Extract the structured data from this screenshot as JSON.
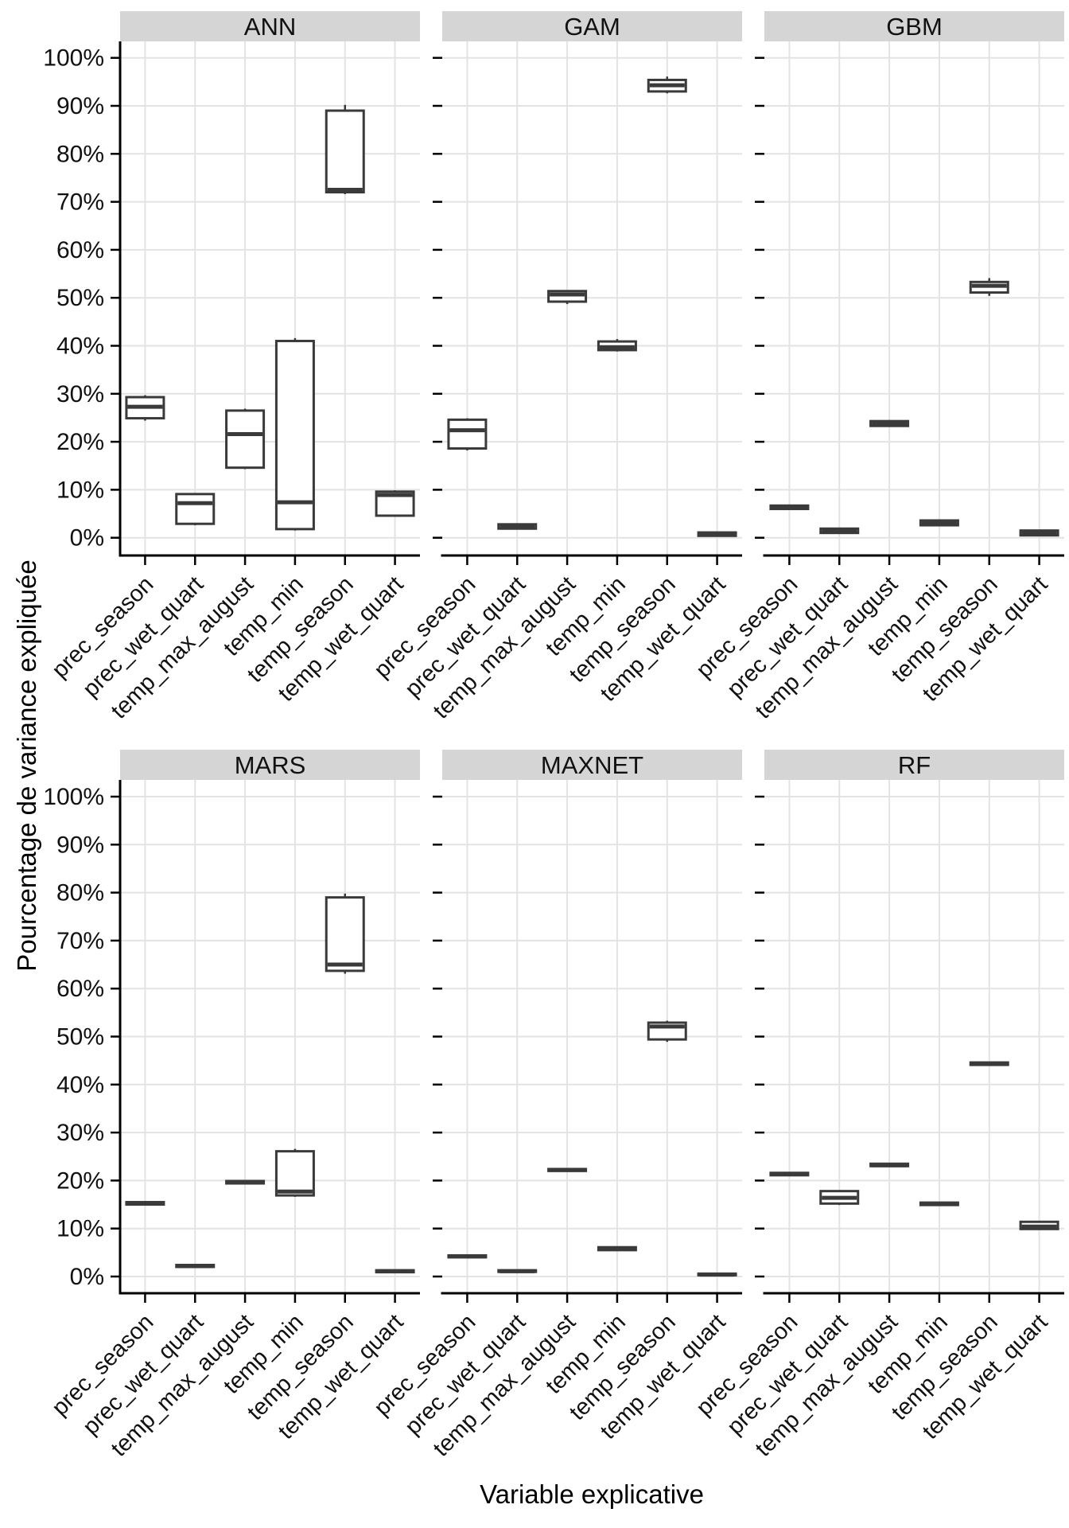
{
  "figure": {
    "y_axis_title": "Pourcentage de variance expliquée",
    "x_axis_title": "Variable explicative"
  },
  "chart_data": {
    "type": "boxplot",
    "facet_layout": [
      "ANN",
      "GAM",
      "GBM",
      "MARS",
      "MAXNET",
      "RF"
    ],
    "categories": [
      "prec_season",
      "prec_wet_quart",
      "temp_max_august",
      "temp_min",
      "temp_season",
      "temp_wet_quart"
    ],
    "y_axis": {
      "label": "Pourcentage de variance expliquée",
      "tick_labels": [
        "0%",
        "10%",
        "20%",
        "30%",
        "40%",
        "50%",
        "60%",
        "70%",
        "80%",
        "90%",
        "100%"
      ],
      "tick_values": [
        0,
        10,
        20,
        30,
        40,
        50,
        60,
        70,
        80,
        90,
        100
      ],
      "range": [
        0,
        100
      ],
      "grid": true
    },
    "x_axis": {
      "label": "Variable explicative",
      "tick_rotation_deg": 45
    },
    "facets": [
      {
        "name": "ANN",
        "boxes": [
          {
            "variable": "prec_season",
            "whisker_low": 24.4,
            "q1": 24.9,
            "median": 27.3,
            "q3": 29.3,
            "whisker_high": 29.7
          },
          {
            "variable": "prec_wet_quart",
            "whisker_low": 2.6,
            "q1": 2.9,
            "median": 7.2,
            "q3": 9.1,
            "whisker_high": 9.3
          },
          {
            "variable": "temp_max_august",
            "whisker_low": 14.3,
            "q1": 14.6,
            "median": 21.6,
            "q3": 26.5,
            "whisker_high": 26.9
          },
          {
            "variable": "temp_min",
            "whisker_low": 1.5,
            "q1": 1.8,
            "median": 7.4,
            "q3": 41.0,
            "whisker_high": 41.6
          },
          {
            "variable": "temp_season",
            "whisker_low": 71.6,
            "q1": 72.0,
            "median": 72.5,
            "q3": 89.0,
            "whisker_high": 90.2
          },
          {
            "variable": "temp_wet_quart",
            "whisker_low": 4.4,
            "q1": 4.6,
            "median": 8.9,
            "q3": 9.6,
            "whisker_high": 9.9
          }
        ]
      },
      {
        "name": "GAM",
        "boxes": [
          {
            "variable": "prec_season",
            "whisker_low": 18.2,
            "q1": 18.6,
            "median": 22.4,
            "q3": 24.6,
            "whisker_high": 24.9
          },
          {
            "variable": "prec_wet_quart",
            "whisker_low": 1.7,
            "q1": 1.9,
            "median": 2.3,
            "q3": 2.8,
            "whisker_high": 3.0
          },
          {
            "variable": "temp_max_august",
            "whisker_low": 48.7,
            "q1": 49.2,
            "median": 50.7,
            "q3": 51.4,
            "whisker_high": 51.6
          },
          {
            "variable": "temp_min",
            "whisker_low": 38.8,
            "q1": 39.1,
            "median": 39.7,
            "q3": 40.9,
            "whisker_high": 41.4
          },
          {
            "variable": "temp_season",
            "whisker_low": 92.6,
            "q1": 93.0,
            "median": 94.3,
            "q3": 95.4,
            "whisker_high": 96.1
          },
          {
            "variable": "temp_wet_quart",
            "whisker_low": 0.3,
            "q1": 0.4,
            "median": 0.7,
            "q3": 1.1,
            "whisker_high": 1.2
          }
        ]
      },
      {
        "name": "GBM",
        "boxes": [
          {
            "variable": "prec_season",
            "whisker_low": 5.9,
            "q1": 6.0,
            "median": 6.3,
            "q3": 6.7,
            "whisker_high": 6.8
          },
          {
            "variable": "prec_wet_quart",
            "whisker_low": 0.9,
            "q1": 1.0,
            "median": 1.4,
            "q3": 1.9,
            "whisker_high": 2.0
          },
          {
            "variable": "temp_max_august",
            "whisker_low": 23.1,
            "q1": 23.3,
            "median": 23.8,
            "q3": 24.3,
            "whisker_high": 24.5
          },
          {
            "variable": "temp_min",
            "whisker_low": 2.4,
            "q1": 2.6,
            "median": 3.0,
            "q3": 3.6,
            "whisker_high": 3.7
          },
          {
            "variable": "temp_season",
            "whisker_low": 50.4,
            "q1": 51.1,
            "median": 52.5,
            "q3": 53.3,
            "whisker_high": 54.1
          },
          {
            "variable": "temp_wet_quart",
            "whisker_low": 0.4,
            "q1": 0.5,
            "median": 0.9,
            "q3": 1.5,
            "whisker_high": 1.6
          }
        ]
      },
      {
        "name": "MARS",
        "boxes": [
          {
            "variable": "prec_season",
            "whisker_low": 14.9,
            "q1": 15.0,
            "median": 15.2,
            "q3": 15.5,
            "whisker_high": 15.6
          },
          {
            "variable": "prec_wet_quart",
            "whisker_low": 1.9,
            "q1": 2.0,
            "median": 2.2,
            "q3": 2.4,
            "whisker_high": 2.5
          },
          {
            "variable": "temp_max_august",
            "whisker_low": 19.3,
            "q1": 19.4,
            "median": 19.6,
            "q3": 19.9,
            "whisker_high": 20.0
          },
          {
            "variable": "temp_min",
            "whisker_low": 16.6,
            "q1": 16.9,
            "median": 17.7,
            "q3": 26.1,
            "whisker_high": 26.6
          },
          {
            "variable": "temp_season",
            "whisker_low": 63.1,
            "q1": 63.7,
            "median": 65.0,
            "q3": 79.0,
            "whisker_high": 79.8
          },
          {
            "variable": "temp_wet_quart",
            "whisker_low": 0.8,
            "q1": 0.9,
            "median": 1.1,
            "q3": 1.3,
            "whisker_high": 1.4
          }
        ]
      },
      {
        "name": "MAXNET",
        "boxes": [
          {
            "variable": "prec_season",
            "whisker_low": 3.9,
            "q1": 4.0,
            "median": 4.2,
            "q3": 4.4,
            "whisker_high": 4.5
          },
          {
            "variable": "prec_wet_quart",
            "whisker_low": 0.9,
            "q1": 1.0,
            "median": 1.1,
            "q3": 1.3,
            "whisker_high": 1.4
          },
          {
            "variable": "temp_max_august",
            "whisker_low": 21.9,
            "q1": 22.0,
            "median": 22.2,
            "q3": 22.4,
            "whisker_high": 22.5
          },
          {
            "variable": "temp_min",
            "whisker_low": 5.4,
            "q1": 5.5,
            "median": 5.8,
            "q3": 6.1,
            "whisker_high": 6.2
          },
          {
            "variable": "temp_season",
            "whisker_low": 48.9,
            "q1": 49.4,
            "median": 52.1,
            "q3": 52.9,
            "whisker_high": 53.3
          },
          {
            "variable": "temp_wet_quart",
            "whisker_low": 0.2,
            "q1": 0.3,
            "median": 0.4,
            "q3": 0.6,
            "whisker_high": 0.7
          }
        ]
      },
      {
        "name": "RF",
        "boxes": [
          {
            "variable": "prec_season",
            "whisker_low": 21.0,
            "q1": 21.1,
            "median": 21.3,
            "q3": 21.6,
            "whisker_high": 21.7
          },
          {
            "variable": "prec_wet_quart",
            "whisker_low": 14.9,
            "q1": 15.2,
            "median": 16.4,
            "q3": 17.8,
            "whisker_high": 18.0
          },
          {
            "variable": "temp_max_august",
            "whisker_low": 22.9,
            "q1": 23.0,
            "median": 23.2,
            "q3": 23.5,
            "whisker_high": 23.6
          },
          {
            "variable": "temp_min",
            "whisker_low": 14.8,
            "q1": 14.9,
            "median": 15.1,
            "q3": 15.4,
            "whisker_high": 15.5
          },
          {
            "variable": "temp_season",
            "whisker_low": 44.0,
            "q1": 44.1,
            "median": 44.3,
            "q3": 44.6,
            "whisker_high": 44.7
          },
          {
            "variable": "temp_wet_quart",
            "whisker_low": 9.7,
            "q1": 9.9,
            "median": 10.4,
            "q3": 11.4,
            "whisker_high": 11.6
          }
        ]
      }
    ],
    "style": {
      "box_color": "#3a3a3a",
      "box_fill": "#ffffff",
      "grid_color": "#e3e3e3",
      "strip_bg": "#d5d5d5",
      "strip_text_color": "#111111",
      "axis_color": "#000000",
      "tick_label_color": "#111111"
    }
  }
}
